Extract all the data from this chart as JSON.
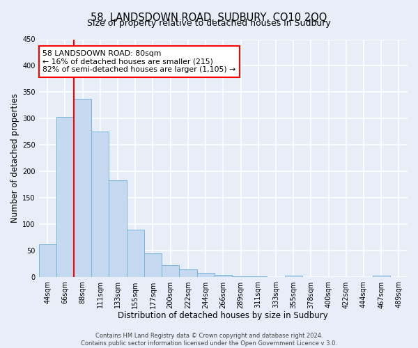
{
  "title": "58, LANDSDOWN ROAD, SUDBURY, CO10 2QQ",
  "subtitle": "Size of property relative to detached houses in Sudbury",
  "xlabel": "Distribution of detached houses by size in Sudbury",
  "ylabel": "Number of detached properties",
  "bar_labels": [
    "44sqm",
    "66sqm",
    "88sqm",
    "111sqm",
    "133sqm",
    "155sqm",
    "177sqm",
    "200sqm",
    "222sqm",
    "244sqm",
    "266sqm",
    "289sqm",
    "311sqm",
    "333sqm",
    "355sqm",
    "378sqm",
    "400sqm",
    "422sqm",
    "444sqm",
    "467sqm",
    "489sqm"
  ],
  "bar_values": [
    62,
    303,
    338,
    275,
    183,
    90,
    45,
    23,
    15,
    8,
    4,
    2,
    2,
    1,
    3,
    1,
    0,
    1,
    0,
    3,
    1
  ],
  "bar_color": "#c5d9f0",
  "bar_edge_color": "#7ab4d8",
  "vline_x": 2.0,
  "vline_color": "red",
  "ylim": [
    0,
    450
  ],
  "yticks": [
    0,
    50,
    100,
    150,
    200,
    250,
    300,
    350,
    400,
    450
  ],
  "annotation_box_text": "58 LANDSDOWN ROAD: 80sqm\n← 16% of detached houses are smaller (215)\n82% of semi-detached houses are larger (1,105) →",
  "annotation_box_color": "white",
  "annotation_box_edgecolor": "red",
  "footer_line1": "Contains HM Land Registry data © Crown copyright and database right 2024.",
  "footer_line2": "Contains public sector information licensed under the Open Government Licence v 3.0.",
  "background_color": "#e8eef8",
  "grid_color": "white",
  "title_fontsize": 10.5,
  "axis_fontsize": 8.5,
  "tick_fontsize": 7,
  "footer_fontsize": 6,
  "annot_fontsize": 7.8
}
